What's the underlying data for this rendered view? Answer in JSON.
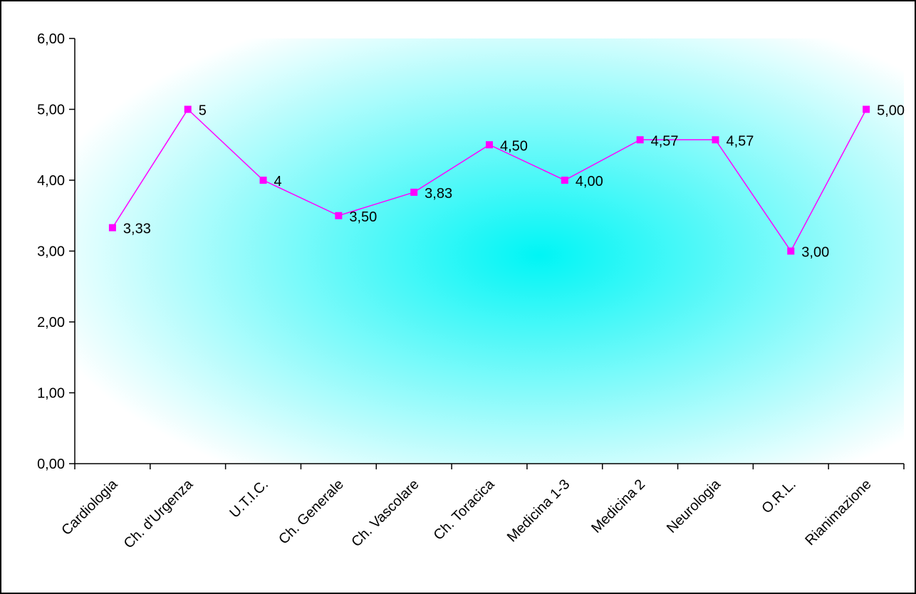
{
  "chart_data": {
    "type": "line",
    "title": "",
    "xlabel": "",
    "ylabel": "",
    "ylim": [
      0,
      6
    ],
    "yticks": [
      "0,00",
      "1,00",
      "2,00",
      "3,00",
      "4,00",
      "5,00",
      "6,00"
    ],
    "categories": [
      "Cardiologia",
      "Ch. d'Urgenza",
      "U.T.I.C.",
      "Ch. Generale",
      "Ch. Vascolare",
      "Ch. Toracica",
      "Medicina 1-3",
      "Medicina 2",
      "Neurologia",
      "O.R.L.",
      "Rianimazione"
    ],
    "series": [
      {
        "values": [
          3.33,
          5,
          4,
          3.5,
          3.83,
          4.5,
          4,
          4.57,
          4.57,
          3,
          5
        ],
        "data_labels": [
          "3,33",
          "5",
          "4",
          "3,50",
          "3,83",
          "4,50",
          "4,00",
          "4,57",
          "4,57",
          "3,00",
          "5,00"
        ]
      }
    ],
    "grid": false,
    "legend": "none",
    "colors": {
      "line": "#ff00ff",
      "marker": "#ff00ff",
      "plot_center": "#00f5f5",
      "plot_edge": "#ffffff",
      "axis": "#000000"
    }
  }
}
